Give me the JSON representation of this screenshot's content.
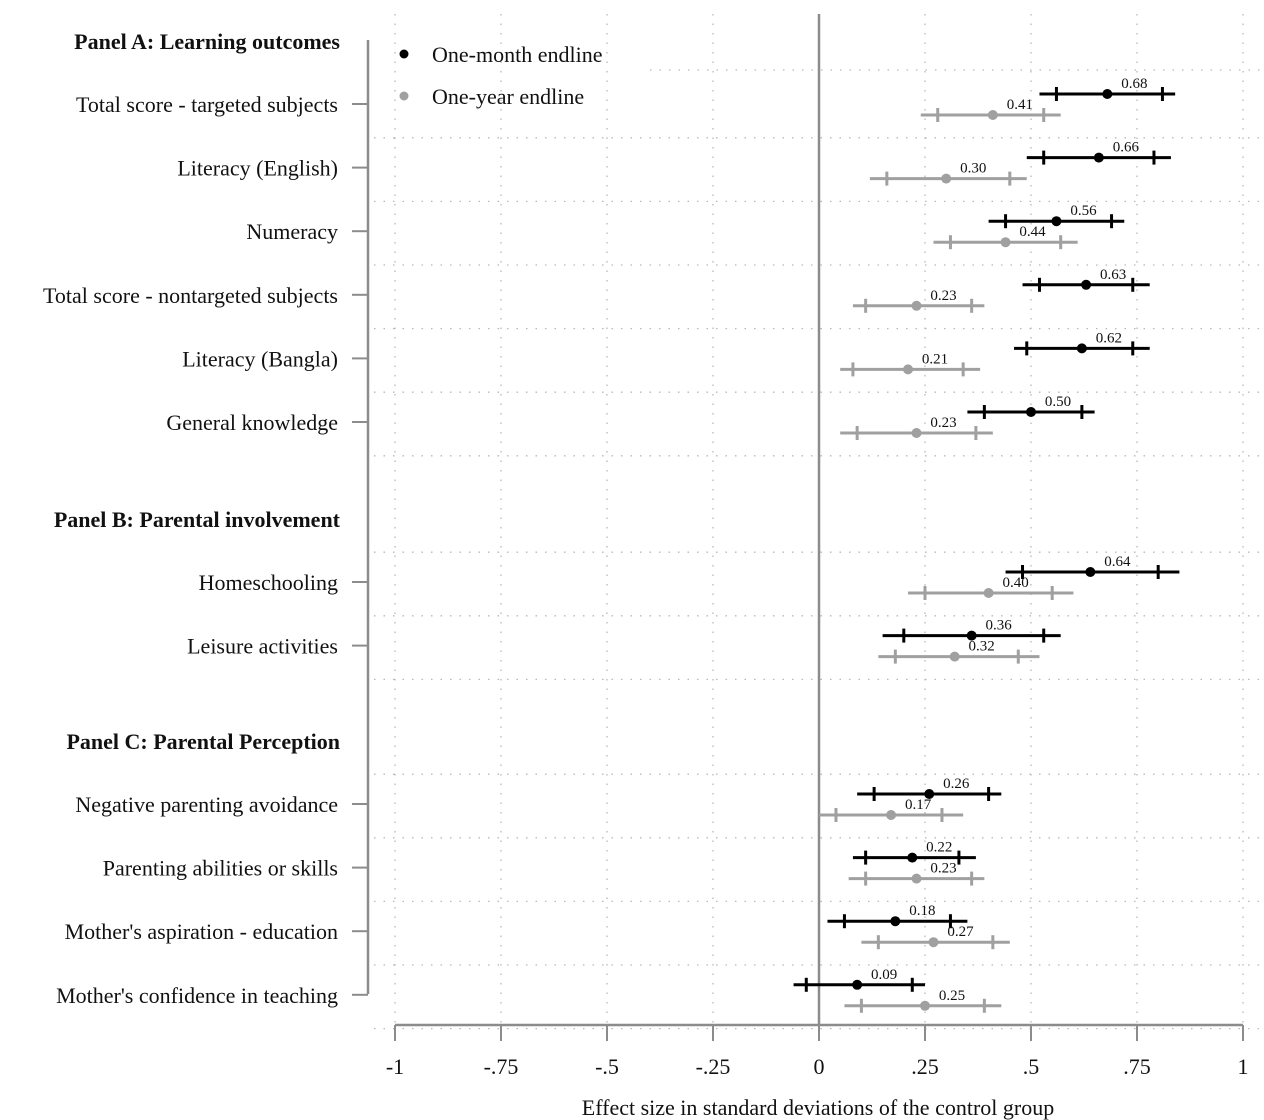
{
  "chart_data": {
    "type": "scatter",
    "subtype": "coefficient-plot",
    "title": "",
    "xlabel": "Effect size in standard deviations of the control group",
    "ylabel": "",
    "xlim": [
      -1,
      1
    ],
    "x_ticks": [
      -1,
      -0.75,
      -0.5,
      -0.25,
      0,
      0.25,
      0.5,
      0.75,
      1
    ],
    "x_tick_labels": [
      "-1",
      "-.75",
      "-.5",
      "-.25",
      "0",
      ".25",
      ".5",
      ".75",
      "1"
    ],
    "grid": "dotted",
    "legend": {
      "position": "top-left",
      "entries": [
        {
          "label": "One-month endline",
          "color": "#000000"
        },
        {
          "label": "One-year endline",
          "color": "#a0a0a0"
        }
      ]
    },
    "series": [
      {
        "name": "One-month endline",
        "color": "#000000"
      },
      {
        "name": "One-year endline",
        "color": "#a0a0a0"
      }
    ],
    "panels": [
      {
        "title": "Panel A: Learning outcomes",
        "outcomes": [
          {
            "label": "Total score - targeted subjects",
            "month": {
              "est": 0.68,
              "label": "0.68",
              "ci90": [
                0.56,
                0.81
              ],
              "ci95": [
                0.52,
                0.84
              ]
            },
            "year": {
              "est": 0.41,
              "label": "0.41",
              "ci90": [
                0.28,
                0.53
              ],
              "ci95": [
                0.24,
                0.57
              ]
            }
          },
          {
            "label": "Literacy (English)",
            "month": {
              "est": 0.66,
              "label": "0.66",
              "ci90": [
                0.53,
                0.79
              ],
              "ci95": [
                0.49,
                0.83
              ]
            },
            "year": {
              "est": 0.3,
              "label": "0.30",
              "ci90": [
                0.16,
                0.45
              ],
              "ci95": [
                0.12,
                0.49
              ]
            }
          },
          {
            "label": "Numeracy",
            "month": {
              "est": 0.56,
              "label": "0.56",
              "ci90": [
                0.44,
                0.69
              ],
              "ci95": [
                0.4,
                0.72
              ]
            },
            "year": {
              "est": 0.44,
              "label": "0.44",
              "ci90": [
                0.31,
                0.57
              ],
              "ci95": [
                0.27,
                0.61
              ]
            }
          },
          {
            "label": "Total score - nontargeted subjects",
            "month": {
              "est": 0.63,
              "label": "0.63",
              "ci90": [
                0.52,
                0.74
              ],
              "ci95": [
                0.48,
                0.78
              ]
            },
            "year": {
              "est": 0.23,
              "label": "0.23",
              "ci90": [
                0.11,
                0.36
              ],
              "ci95": [
                0.08,
                0.39
              ]
            }
          },
          {
            "label": "Literacy (Bangla)",
            "month": {
              "est": 0.62,
              "label": "0.62",
              "ci90": [
                0.49,
                0.74
              ],
              "ci95": [
                0.46,
                0.78
              ]
            },
            "year": {
              "est": 0.21,
              "label": "0.21",
              "ci90": [
                0.08,
                0.34
              ],
              "ci95": [
                0.05,
                0.38
              ]
            }
          },
          {
            "label": "General knowledge",
            "month": {
              "est": 0.5,
              "label": "0.50",
              "ci90": [
                0.39,
                0.62
              ],
              "ci95": [
                0.35,
                0.65
              ]
            },
            "year": {
              "est": 0.23,
              "label": "0.23",
              "ci90": [
                0.09,
                0.37
              ],
              "ci95": [
                0.05,
                0.41
              ]
            }
          }
        ]
      },
      {
        "title": "Panel B: Parental involvement",
        "outcomes": [
          {
            "label": "Homeschooling",
            "month": {
              "est": 0.64,
              "label": "0.64",
              "ci90": [
                0.48,
                0.8
              ],
              "ci95": [
                0.44,
                0.85
              ]
            },
            "year": {
              "est": 0.4,
              "label": "0.40",
              "ci90": [
                0.25,
                0.55
              ],
              "ci95": [
                0.21,
                0.6
              ]
            }
          },
          {
            "label": "Leisure activities",
            "month": {
              "est": 0.36,
              "label": "0.36",
              "ci90": [
                0.2,
                0.53
              ],
              "ci95": [
                0.15,
                0.57
              ]
            },
            "year": {
              "est": 0.32,
              "label": "0.32",
              "ci90": [
                0.18,
                0.47
              ],
              "ci95": [
                0.14,
                0.52
              ]
            }
          }
        ]
      },
      {
        "title": "Panel C: Parental Perception",
        "outcomes": [
          {
            "label": "Negative parenting avoidance",
            "month": {
              "est": 0.26,
              "label": "0.26",
              "ci90": [
                0.13,
                0.4
              ],
              "ci95": [
                0.09,
                0.43
              ]
            },
            "year": {
              "est": 0.17,
              "label": "0.17",
              "ci90": [
                0.04,
                0.29
              ],
              "ci95": [
                0.0,
                0.34
              ]
            }
          },
          {
            "label": "Parenting abilities or skills",
            "month": {
              "est": 0.22,
              "label": "0.22",
              "ci90": [
                0.11,
                0.33
              ],
              "ci95": [
                0.08,
                0.37
              ]
            },
            "year": {
              "est": 0.23,
              "label": "0.23",
              "ci90": [
                0.11,
                0.36
              ],
              "ci95": [
                0.07,
                0.39
              ]
            }
          },
          {
            "label": "Mother's aspiration - education",
            "month": {
              "est": 0.18,
              "label": "0.18",
              "ci90": [
                0.06,
                0.31
              ],
              "ci95": [
                0.02,
                0.35
              ]
            },
            "year": {
              "est": 0.27,
              "label": "0.27",
              "ci90": [
                0.14,
                0.41
              ],
              "ci95": [
                0.1,
                0.45
              ]
            }
          },
          {
            "label": "Mother's confidence in teaching",
            "month": {
              "est": 0.09,
              "label": "0.09",
              "ci90": [
                -0.03,
                0.22
              ],
              "ci95": [
                -0.06,
                0.25
              ]
            },
            "year": {
              "est": 0.25,
              "label": "0.25",
              "ci90": [
                0.1,
                0.39
              ],
              "ci95": [
                0.06,
                0.43
              ]
            }
          }
        ]
      }
    ]
  }
}
